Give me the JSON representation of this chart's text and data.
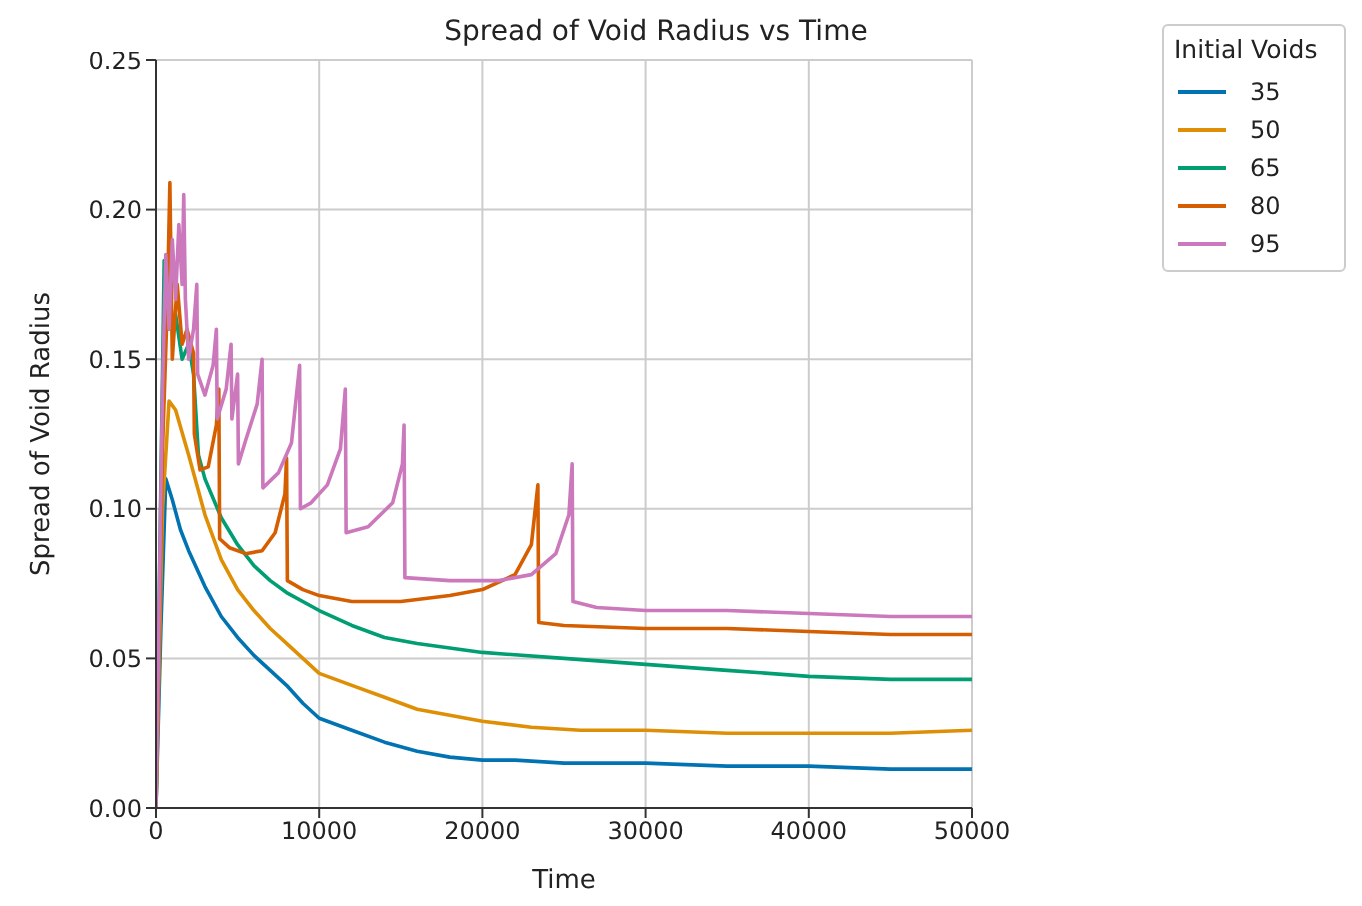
{
  "chart_data": {
    "type": "line",
    "title": "Spread of Void Radius vs Time",
    "xlabel": "Time",
    "ylabel": "Spread of Void Radius",
    "legend_title": "Initial Voids",
    "legend": "top right",
    "grid": true,
    "marker": "none",
    "line_style": "solid",
    "xlim": [
      0,
      50000
    ],
    "xticks": [
      0,
      10000,
      20000,
      30000,
      40000,
      50000
    ],
    "ylim": [
      0,
      0.25
    ],
    "yticks": [
      {
        "value": 0,
        "label": "0.00"
      },
      0.05,
      {
        "value": 0.1,
        "label": "0.10"
      },
      0.15,
      {
        "value": 0.2,
        "label": "0.20"
      },
      0.25
    ],
    "series": [
      {
        "name": "35",
        "color": "#0173b2",
        "x": [
          0,
          300,
          600,
          1000,
          1500,
          2000,
          3000,
          4000,
          5000,
          6000,
          7000,
          8000,
          9000,
          10000,
          12000,
          14000,
          16000,
          18000,
          20000,
          22000,
          25000,
          30000,
          35000,
          40000,
          45000,
          50000
        ],
        "values": [
          0,
          0.06,
          0.11,
          0.103,
          0.093,
          0.086,
          0.074,
          0.064,
          0.057,
          0.051,
          0.046,
          0.041,
          0.035,
          0.03,
          0.026,
          0.022,
          0.019,
          0.017,
          0.016,
          0.016,
          0.015,
          0.015,
          0.014,
          0.014,
          0.013,
          0.013
        ]
      },
      {
        "name": "50",
        "color": "#de8f05",
        "x": [
          0,
          400,
          800,
          1200,
          2000,
          3000,
          4000,
          5000,
          6000,
          7000,
          8000,
          10000,
          12000,
          14000,
          16000,
          18000,
          20000,
          23000,
          26000,
          30000,
          35000,
          40000,
          45000,
          50000
        ],
        "values": [
          0,
          0.1,
          0.136,
          0.133,
          0.118,
          0.098,
          0.083,
          0.073,
          0.066,
          0.06,
          0.055,
          0.045,
          0.041,
          0.037,
          0.033,
          0.031,
          0.029,
          0.027,
          0.026,
          0.026,
          0.025,
          0.025,
          0.025,
          0.026
        ]
      },
      {
        "name": "65",
        "color": "#029e73",
        "x": [
          0,
          500,
          800,
          1200,
          1600,
          2000,
          2300,
          2600,
          3000,
          4000,
          5000,
          6000,
          7000,
          8000,
          10000,
          12000,
          14000,
          16000,
          20000,
          25000,
          30000,
          35000,
          40000,
          45000,
          50000
        ],
        "values": [
          0,
          0.183,
          0.16,
          0.165,
          0.15,
          0.155,
          0.145,
          0.118,
          0.11,
          0.097,
          0.088,
          0.081,
          0.076,
          0.072,
          0.066,
          0.061,
          0.057,
          0.055,
          0.052,
          0.05,
          0.048,
          0.046,
          0.044,
          0.043,
          0.043
        ]
      },
      {
        "name": "80",
        "color": "#d55e00",
        "x": [
          0,
          400,
          700,
          850,
          1000,
          1300,
          1600,
          1900,
          2300,
          2350,
          2700,
          3200,
          3700,
          3850,
          3900,
          4500,
          5500,
          6500,
          7300,
          7900,
          8000,
          8050,
          9000,
          10000,
          12000,
          15000,
          18000,
          20000,
          22000,
          23000,
          23400,
          23450,
          25000,
          30000,
          35000,
          40000,
          45000,
          50000
        ],
        "values": [
          0,
          0.12,
          0.17,
          0.209,
          0.15,
          0.175,
          0.155,
          0.16,
          0.152,
          0.125,
          0.113,
          0.114,
          0.128,
          0.14,
          0.09,
          0.087,
          0.085,
          0.086,
          0.092,
          0.105,
          0.117,
          0.076,
          0.073,
          0.071,
          0.069,
          0.069,
          0.071,
          0.073,
          0.078,
          0.088,
          0.108,
          0.062,
          0.061,
          0.06,
          0.06,
          0.059,
          0.058,
          0.058
        ]
      },
      {
        "name": "95",
        "color": "#cc78bc",
        "x": [
          0,
          400,
          600,
          800,
          1000,
          1200,
          1400,
          1600,
          1700,
          1800,
          2000,
          2300,
          2500,
          2550,
          3000,
          3500,
          3700,
          3750,
          4300,
          4600,
          4650,
          5000,
          5050,
          5500,
          6200,
          6500,
          6550,
          7500,
          8300,
          8800,
          8850,
          9500,
          10500,
          11300,
          11600,
          11650,
          13000,
          14500,
          15100,
          15200,
          15250,
          18000,
          21000,
          23000,
          24500,
          25300,
          25500,
          25550,
          27000,
          30000,
          35000,
          40000,
          45000,
          50000
        ],
        "values": [
          0,
          0.14,
          0.185,
          0.16,
          0.19,
          0.17,
          0.195,
          0.175,
          0.205,
          0.17,
          0.15,
          0.16,
          0.175,
          0.145,
          0.138,
          0.148,
          0.16,
          0.13,
          0.14,
          0.155,
          0.13,
          0.145,
          0.115,
          0.123,
          0.135,
          0.15,
          0.107,
          0.112,
          0.122,
          0.148,
          0.1,
          0.102,
          0.108,
          0.12,
          0.14,
          0.092,
          0.094,
          0.102,
          0.115,
          0.128,
          0.077,
          0.076,
          0.076,
          0.078,
          0.085,
          0.098,
          0.115,
          0.069,
          0.067,
          0.066,
          0.066,
          0.065,
          0.064,
          0.064
        ]
      }
    ]
  }
}
